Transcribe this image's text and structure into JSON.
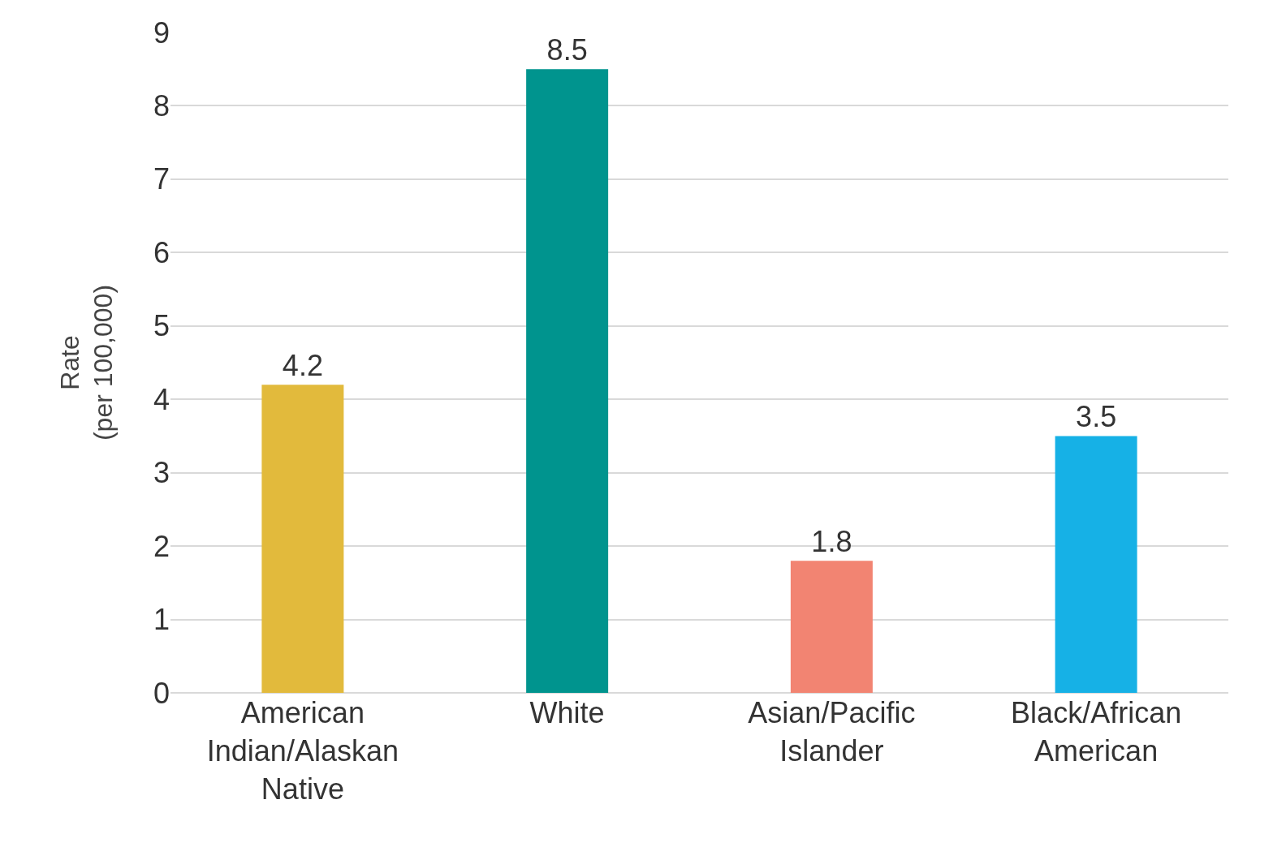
{
  "chart_data": {
    "type": "bar",
    "ylabel": "Rate (per 100,000)",
    "categories": [
      "American Indian/Alaskan Native",
      "White",
      "Asian/Pacific Islander",
      "Black/African American"
    ],
    "values": [
      4.2,
      8.5,
      1.8,
      3.5
    ],
    "colors": [
      "#e2ba3c",
      "#00948e",
      "#f28472",
      "#16b1e6"
    ],
    "ylim": [
      0,
      9
    ],
    "yticks": [
      0,
      1,
      2,
      3,
      4,
      5,
      6,
      7,
      8,
      9
    ],
    "grid": "y",
    "data_labels": true
  }
}
